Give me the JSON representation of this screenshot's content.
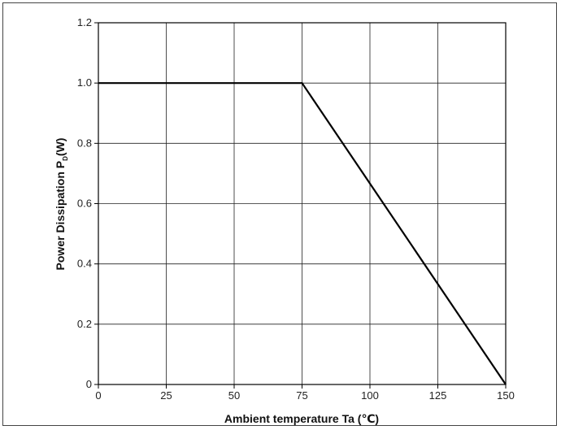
{
  "chart_data": {
    "type": "line",
    "xlabel": "Ambient temperature  Ta (℃)",
    "ylabel_main": "Power Dissipation  P",
    "ylabel_sub": "D",
    "ylabel_unit": "(W)",
    "xlim": [
      0,
      150
    ],
    "ylim": [
      0,
      1.2
    ],
    "x_ticks": [
      0,
      25,
      50,
      75,
      100,
      125,
      150
    ],
    "y_ticks": [
      0,
      0.2,
      0.4,
      0.6,
      0.8,
      1.0,
      1.2
    ],
    "x_tick_labels": [
      "0",
      "25",
      "50",
      "75",
      "100",
      "125",
      "150"
    ],
    "y_tick_labels": [
      "0",
      "0.2",
      "0.4",
      "0.6",
      "0.8",
      "1.0",
      "1.2"
    ],
    "grid": true,
    "series": [
      {
        "x": [
          0,
          75,
          150
        ],
        "y": [
          1.0,
          1.0,
          0
        ],
        "color": "#000000"
      }
    ]
  }
}
